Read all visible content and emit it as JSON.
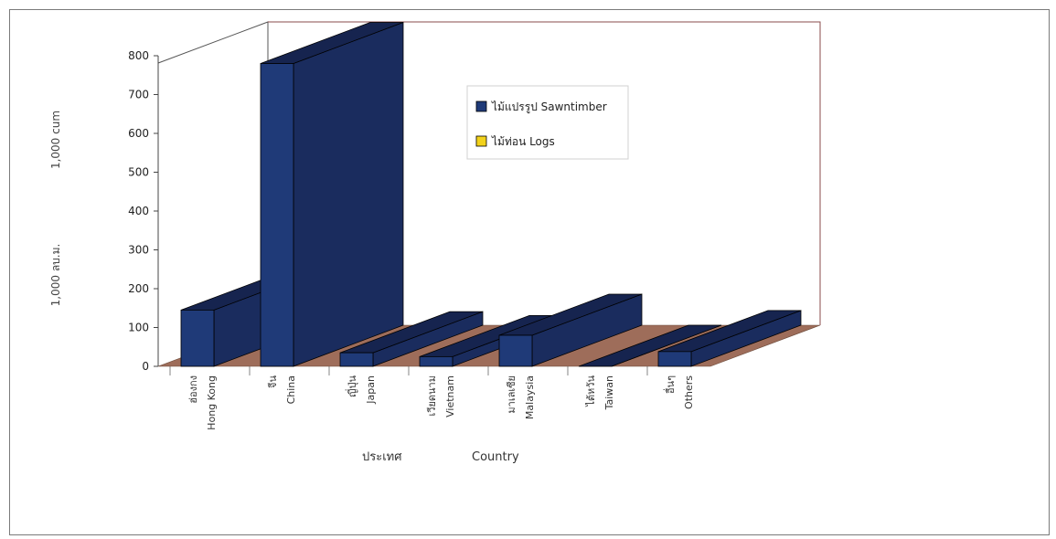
{
  "chart_data": {
    "type": "bar",
    "style": "3d-stacked-depth",
    "categories": [
      {
        "th": "ฮ่องกง",
        "en": "Hong Kong"
      },
      {
        "th": "จีน",
        "en": "China"
      },
      {
        "th": "ญี่ปุ่น",
        "en": "Japan"
      },
      {
        "th": "เวียดนาม",
        "en": "Vietnam"
      },
      {
        "th": "มาเลเซีย",
        "en": "Malaysia"
      },
      {
        "th": "ไต้หวัน",
        "en": "Taiwan"
      },
      {
        "th": "อื่นๆ",
        "en": "Others"
      }
    ],
    "series": [
      {
        "name": "ไม้แปรรูป Sawntimber",
        "color": "#1f3a78",
        "values": [
          145,
          780,
          35,
          25,
          80,
          0,
          38
        ]
      },
      {
        "name": "ไม้ท่อน Logs",
        "color": "#f2d21b",
        "values": [
          0,
          0,
          0,
          0,
          0,
          0,
          0
        ]
      }
    ],
    "ylim": [
      0,
      800
    ],
    "yticks": [
      0,
      100,
      200,
      300,
      400,
      500,
      600,
      700,
      800
    ],
    "ylabel_th": "1,000 ลบ.ม.",
    "ylabel_en": "1,000 cum",
    "xlabel_th": "ประเทศ",
    "xlabel_en": "Country",
    "legend_position": "top-right",
    "floor_color": "#9e6d5a",
    "wall_line_color": "#8a4b4b"
  }
}
